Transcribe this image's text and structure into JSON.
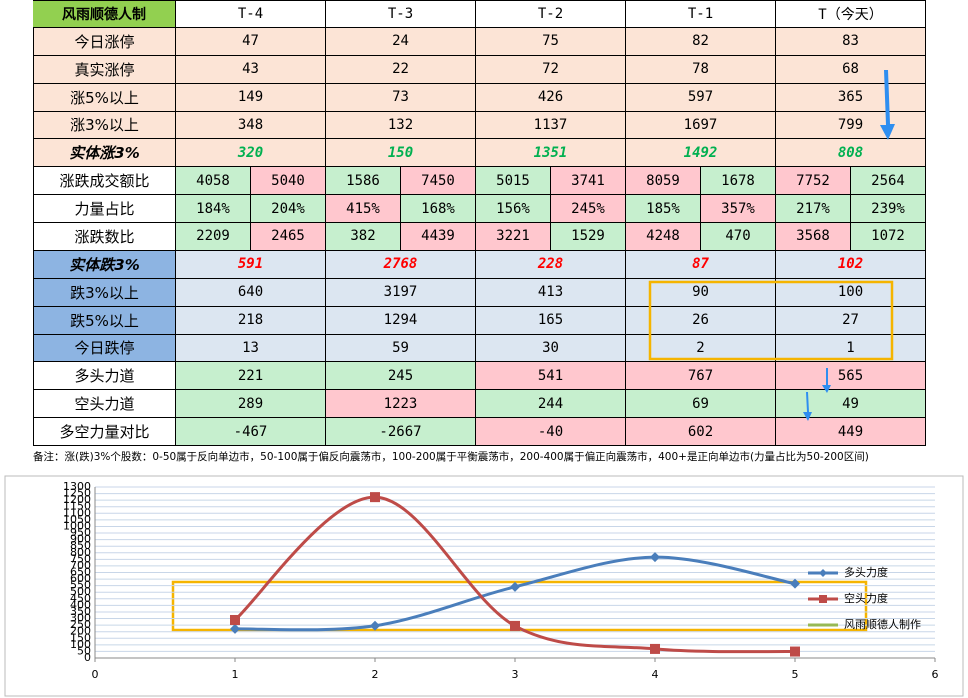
{
  "table": {
    "header": [
      "风雨顺德人制",
      "T-4",
      "T-3",
      "T-2",
      "T-1",
      "T（今天）"
    ],
    "rows": [
      {
        "label": "今日涨停",
        "cells": [
          47,
          24,
          75,
          82,
          83
        ]
      },
      {
        "label": "真实涨停",
        "cells": [
          43,
          22,
          72,
          78,
          68
        ]
      },
      {
        "label": "涨5%以上",
        "cells": [
          149,
          73,
          426,
          597,
          365
        ]
      },
      {
        "label": "涨3%以上",
        "cells": [
          348,
          132,
          1137,
          1697,
          799
        ]
      },
      {
        "label": "实体涨3%",
        "cells": [
          320,
          150,
          1351,
          1492,
          808
        ]
      },
      {
        "label": "涨跌成交额比",
        "cells": [
          [
            4058,
            5040
          ],
          [
            1586,
            7450
          ],
          [
            5015,
            3741
          ],
          [
            8059,
            1678
          ],
          [
            7752,
            2564
          ]
        ]
      },
      {
        "label": "力量占比",
        "cells": [
          [
            "184%",
            "204%"
          ],
          [
            "415%",
            "168%"
          ],
          [
            "156%",
            "245%"
          ],
          [
            "185%",
            "357%"
          ],
          [
            "217%",
            "239%"
          ]
        ]
      },
      {
        "label": "涨跌数比",
        "cells": [
          [
            2209,
            2465
          ],
          [
            382,
            4439
          ],
          [
            3221,
            1529
          ],
          [
            4248,
            470
          ],
          [
            3568,
            1072
          ]
        ]
      },
      {
        "label": "实体跌3%",
        "cells": [
          591,
          2768,
          228,
          87,
          102
        ]
      },
      {
        "label": "跌3%以上",
        "cells": [
          640,
          3197,
          413,
          90,
          100
        ]
      },
      {
        "label": "跌5%以上",
        "cells": [
          218,
          1294,
          165,
          26,
          27
        ]
      },
      {
        "label": "今日跌停",
        "cells": [
          13,
          59,
          30,
          2,
          1
        ]
      },
      {
        "label": "多头力道",
        "cells": [
          221,
          245,
          541,
          767,
          565
        ]
      },
      {
        "label": "空头力道",
        "cells": [
          289,
          1223,
          244,
          69,
          49
        ]
      },
      {
        "label": "多空力量对比",
        "cells": [
          -467,
          -2667,
          -40,
          602,
          449
        ]
      }
    ]
  },
  "note": "备注：涨(跌)3%个股数：0-50属于反向单边市，50-100属于偏反向震荡市，100-200属于平衡震荡市，200-400属于偏正向震荡市，400+是正向单边市(力量占比为50-200区间)",
  "chart_data": {
    "type": "line",
    "x": [
      1,
      2,
      3,
      4,
      5
    ],
    "series": [
      {
        "name": "多头力度",
        "color": "#4a7ebb",
        "values": [
          221,
          245,
          541,
          767,
          565
        ]
      },
      {
        "name": "空头力度",
        "color": "#be4b48",
        "values": [
          289,
          1223,
          244,
          69,
          49
        ]
      },
      {
        "name": "风雨顺德人制作",
        "color": "#98b954",
        "values": [
          null,
          null,
          null,
          null,
          null
        ]
      }
    ],
    "xlim": [
      0,
      6
    ],
    "xticks": [
      0,
      1,
      2,
      3,
      4,
      5,
      6
    ],
    "ylim": [
      0,
      1300
    ],
    "yticks": [
      0,
      50,
      100,
      150,
      200,
      250,
      300,
      350,
      400,
      450,
      500,
      550,
      600,
      650,
      700,
      750,
      800,
      850,
      900,
      950,
      1000,
      1050,
      1100,
      1150,
      1200,
      1250,
      1300
    ],
    "grid": true,
    "legend": "right"
  }
}
